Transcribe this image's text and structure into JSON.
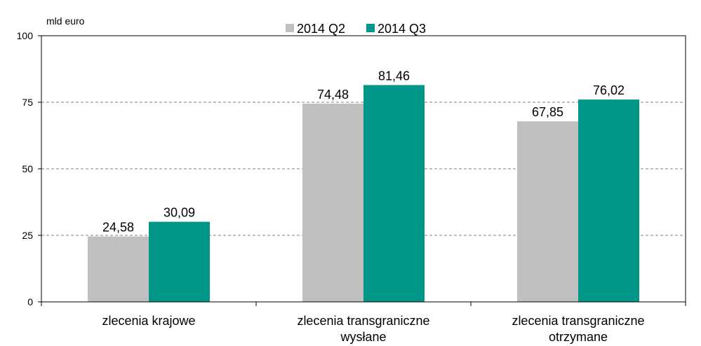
{
  "chart_data": {
    "type": "bar",
    "ylabel": "mld euro",
    "ylim": [
      0,
      100
    ],
    "yticks": [
      0,
      25,
      50,
      75,
      100
    ],
    "grid": true,
    "legend_position": "top",
    "categories": [
      [
        "zlecenia krajowe"
      ],
      [
        "zlecenia transgraniczne",
        "wysłane"
      ],
      [
        "zlecenia transgraniczne",
        "otrzymane"
      ]
    ],
    "series": [
      {
        "name": "2014 Q2",
        "color": "#c0c0c0",
        "values": [
          24.58,
          74.48,
          67.85
        ],
        "labels": [
          "24,58",
          "74,48",
          "67,85"
        ]
      },
      {
        "name": "2014 Q3",
        "color": "#009688",
        "values": [
          30.09,
          81.46,
          76.02
        ],
        "labels": [
          "30,09",
          "81,46",
          "76,02"
        ]
      }
    ]
  }
}
